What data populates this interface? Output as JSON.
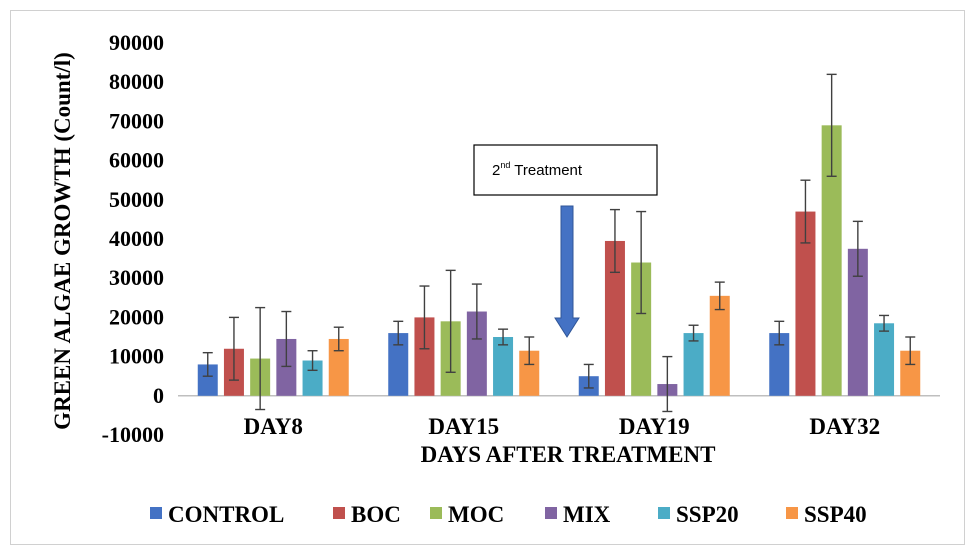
{
  "chart_data": {
    "type": "bar",
    "title": "",
    "xlabel": "DAYS AFTER TREATMENT",
    "ylabel": "GREEN ALGAE GROWTH (Count/l)",
    "ylim": [
      -10000,
      90000
    ],
    "yticks": [
      -10000,
      0,
      10000,
      20000,
      30000,
      40000,
      50000,
      60000,
      70000,
      80000,
      90000
    ],
    "categories": [
      "DAY8",
      "DAY15",
      "DAY19",
      "DAY32"
    ],
    "series": [
      {
        "name": "CONTROL",
        "color": "#4472c4",
        "values": [
          8000,
          16000,
          5000,
          16000
        ],
        "errors": [
          3000,
          3000,
          3000,
          3000
        ]
      },
      {
        "name": "BOC",
        "color": "#c0504d",
        "values": [
          12000,
          20000,
          39500,
          47000
        ],
        "errors": [
          8000,
          8000,
          8000,
          8000
        ]
      },
      {
        "name": "MOC",
        "color": "#9bbb59",
        "values": [
          9500,
          19000,
          34000,
          69000
        ],
        "errors": [
          13000,
          13000,
          13000,
          13000
        ]
      },
      {
        "name": "MIX",
        "color": "#8064a2",
        "values": [
          14500,
          21500,
          3000,
          37500
        ],
        "errors": [
          7000,
          7000,
          7000,
          7000
        ]
      },
      {
        "name": "SSP20",
        "color": "#4bacc6",
        "values": [
          9000,
          15000,
          16000,
          18500
        ],
        "errors": [
          2500,
          2000,
          2000,
          2000
        ]
      },
      {
        "name": "SSP40",
        "color": "#f79646",
        "values": [
          14500,
          11500,
          25500,
          11500
        ],
        "errors": [
          3000,
          3500,
          3500,
          3500
        ]
      }
    ],
    "grid": false,
    "legend_position": "bottom",
    "annotation": {
      "text": "2",
      "superscript": "nd",
      "rest": " Treatment",
      "arrow_color": "#4472c4"
    }
  }
}
